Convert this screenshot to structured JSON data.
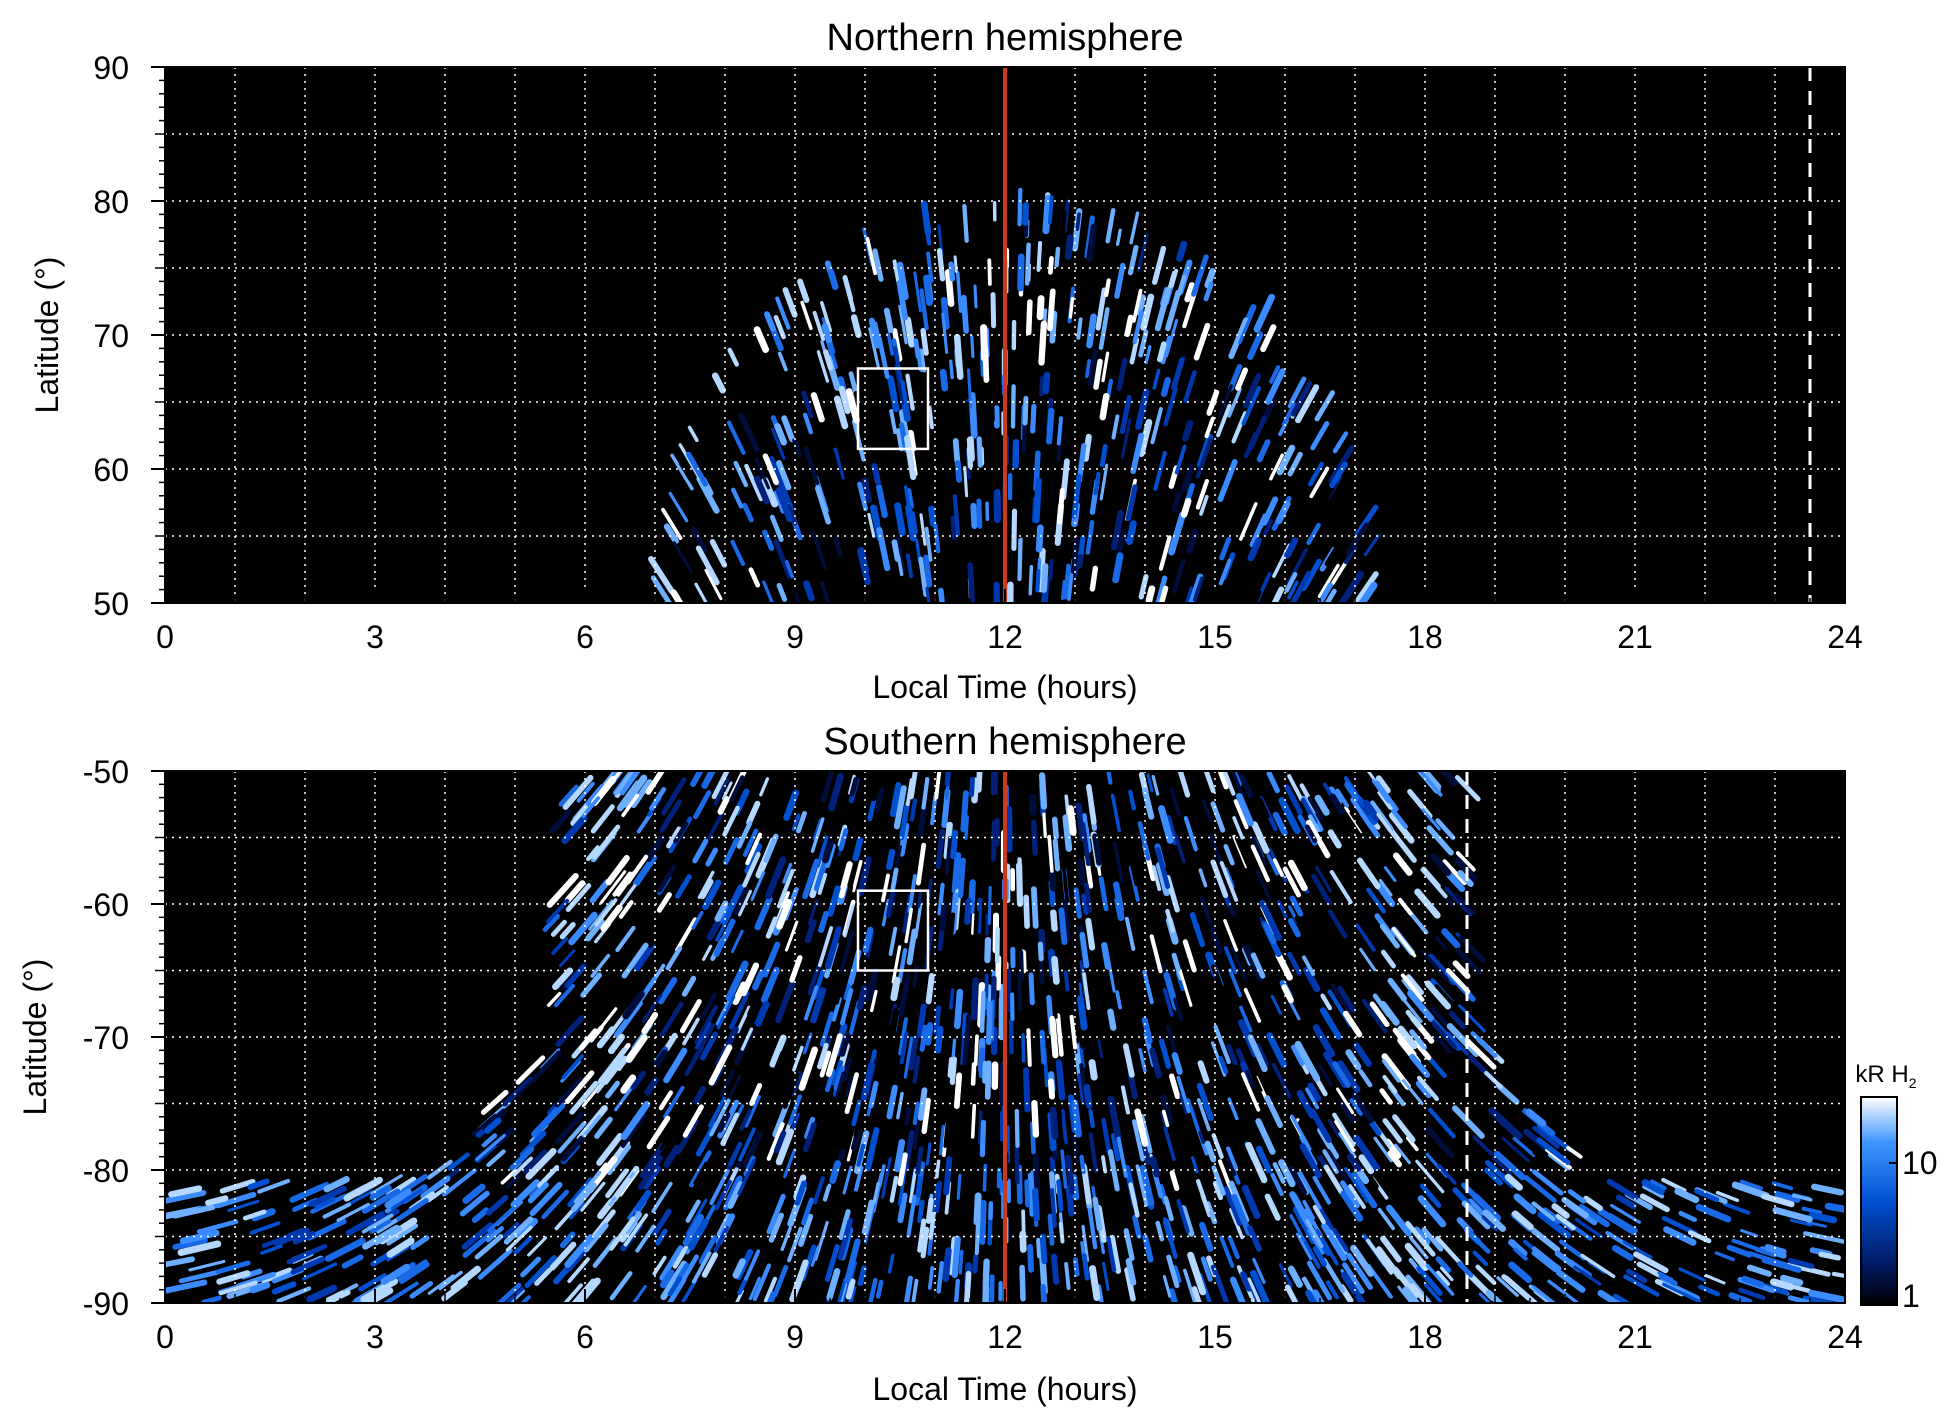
{
  "chart_data": [
    {
      "type": "heatmap",
      "title": "Northern hemisphere",
      "xlabel": "Local Time (hours)",
      "ylabel": "Latitude (°)",
      "xlim": [
        0,
        24
      ],
      "ylim": [
        50,
        90
      ],
      "xticks": [
        "0",
        "3",
        "6",
        "9",
        "12",
        "15",
        "18",
        "21",
        "24"
      ],
      "yticks": [
        "50",
        "60",
        "70",
        "80",
        "90"
      ],
      "grid": true,
      "background": "#000000",
      "emission_region": {
        "lt_range_at_50deg": [
          7.0,
          17.3
        ],
        "max_latitude": 80,
        "auroral_oval_latitude": 72
      },
      "noon_line": {
        "x": 12,
        "color": "#cc3a1e"
      },
      "dashed_line": {
        "x": 23.5,
        "color": "#ffffff"
      },
      "box": {
        "x": [
          9.9,
          10.9
        ],
        "y": [
          61.5,
          67.5
        ]
      }
    },
    {
      "type": "heatmap",
      "title": "Southern hemisphere",
      "xlabel": "Local Time (hours)",
      "ylabel": "Latitude (°)",
      "xlim": [
        0,
        24
      ],
      "ylim": [
        -90,
        -50
      ],
      "xticks": [
        "0",
        "3",
        "6",
        "9",
        "12",
        "15",
        "18",
        "21",
        "24"
      ],
      "yticks": [
        "-50",
        "-60",
        "-70",
        "-80",
        "-90"
      ],
      "grid": true,
      "background": "#000000",
      "emission_region": {
        "lt_range_at_minus50deg": [
          5.5,
          18.7
        ],
        "bright_bands_lt": [
          6.3,
          17.7
        ],
        "polar_cap_from_latitude": -81
      },
      "noon_line": {
        "x": 12,
        "color": "#cc3a1e"
      },
      "dashed_line": {
        "x": 18.6,
        "color": "#ffffff"
      },
      "box": {
        "x": [
          9.9,
          10.9
        ],
        "y": [
          -65,
          -59
        ]
      }
    }
  ],
  "colorbar": {
    "label_main": "kR H",
    "label_sub": "2",
    "scale": "log",
    "ticks": [
      "1",
      "10"
    ],
    "range": [
      1,
      30
    ],
    "colors": [
      "#000000",
      "#001a66",
      "#0050d0",
      "#3c96ff",
      "#ffffff"
    ]
  }
}
